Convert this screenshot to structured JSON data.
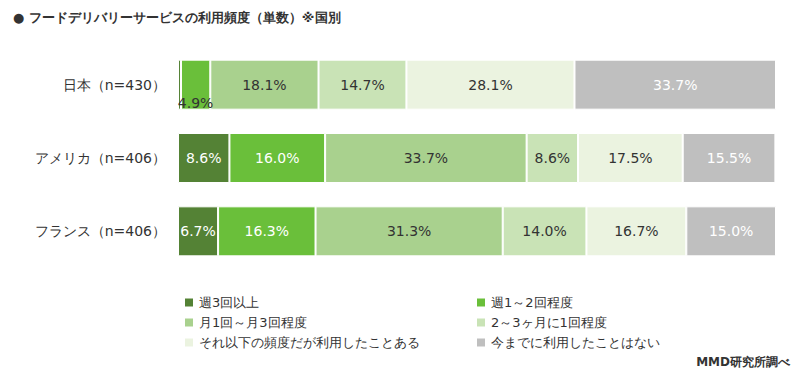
{
  "chart_data": {
    "type": "bar",
    "title": "● フードデリバリーサービスの利用頻度（単数）※国別",
    "annotations": [
      "MMD研究所調べ"
    ],
    "orientation": "horizontal",
    "stacked": true,
    "data_labels": true,
    "tick_labels": "y",
    "grid": false,
    "legend": "bottom",
    "xlim": [
      0,
      100
    ],
    "categories": [
      "日本（n=430）",
      "アメリカ（n=406）",
      "フランス（n=406）"
    ],
    "series": [
      {
        "name": "週3回以上",
        "color": "#548235",
        "values": [
          0.5,
          8.6,
          6.7
        ],
        "value_labels": [
          null,
          "8.6%",
          "6.7%"
        ]
      },
      {
        "name": "週1～2回程度",
        "color": "#6abf3a",
        "values": [
          4.9,
          16.0,
          16.3
        ],
        "value_labels": [
          "4.9%",
          "16.0%",
          "16.3%"
        ]
      },
      {
        "name": "月1回～月3回程度",
        "color": "#a9d18e",
        "values": [
          18.1,
          33.7,
          31.3
        ],
        "value_labels": [
          "18.1%",
          "33.7%",
          "31.3%"
        ]
      },
      {
        "name": "2～3ヶ月に1回程度",
        "color": "#c9e3b6",
        "values": [
          14.7,
          8.6,
          14.0
        ],
        "value_labels": [
          "14.7%",
          "8.6%",
          "14.0%"
        ]
      },
      {
        "name": "それ以下の頻度だが利用したことある",
        "color": "#ebf3e0",
        "values": [
          28.1,
          17.5,
          16.7
        ],
        "value_labels": [
          "28.1%",
          "17.5%",
          "16.7%"
        ]
      },
      {
        "name": "今までに利用したことはない",
        "color": "#bfbfbf",
        "values": [
          33.7,
          15.5,
          15.0
        ],
        "value_labels": [
          "33.7%",
          "15.5%",
          "15.0%"
        ]
      }
    ]
  }
}
